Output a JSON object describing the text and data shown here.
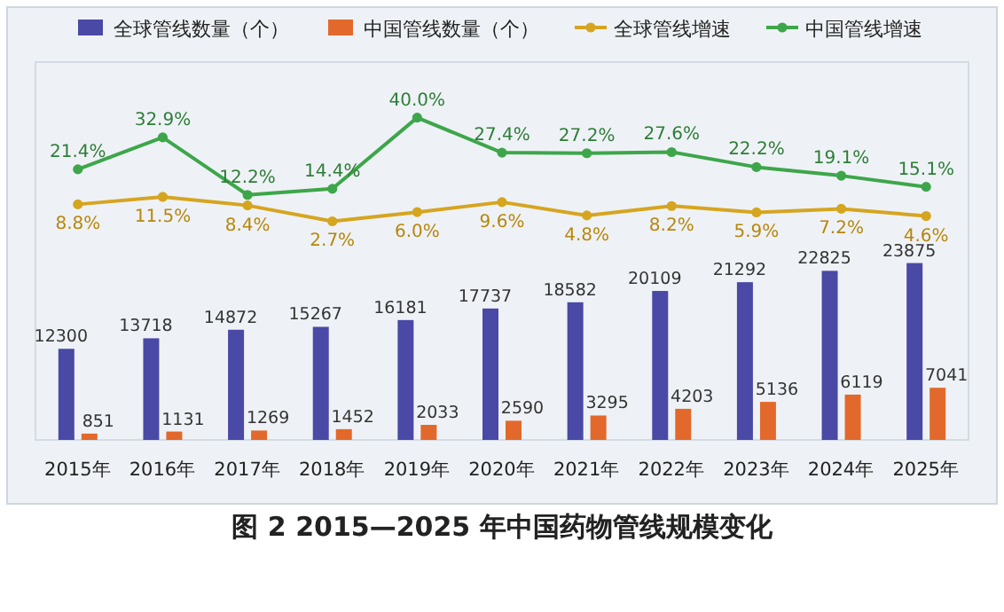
{
  "chart_data": {
    "type": "bar",
    "title": "图 2 2015—2025 年中国药物管线规模变化",
    "categories": [
      "2015年",
      "2016年",
      "2017年",
      "2018年",
      "2019年",
      "2020年",
      "2021年",
      "2022年",
      "2023年",
      "2024年",
      "2025年"
    ],
    "series": [
      {
        "name": "全球管线数量（个）",
        "color": "#4a49a6",
        "values": [
          12300,
          13718,
          14872,
          15267,
          16181,
          17737,
          18582,
          20109,
          21292,
          22825,
          23875
        ],
        "value_labels": [
          "12300",
          "13718",
          "14872",
          "15267",
          "16181",
          "17737",
          "18582",
          "20109",
          "21292",
          "22825",
          "23875"
        ]
      },
      {
        "name": "中国管线数量（个）",
        "color": "#e2692b",
        "values": [
          851,
          1131,
          1269,
          1452,
          2033,
          2590,
          3295,
          4203,
          5136,
          6119,
          7041
        ],
        "value_labels": [
          "851",
          "1131",
          "1269",
          "1452",
          "2033",
          "2590",
          "3295",
          "4203",
          "5136",
          "6119",
          "7041"
        ]
      },
      {
        "name": "全球管线增速",
        "type": "line",
        "axis": "y2",
        "color": "#d6a520",
        "values": [
          8.8,
          11.5,
          8.4,
          2.7,
          6.0,
          9.6,
          4.8,
          8.2,
          5.9,
          7.2,
          4.6
        ],
        "value_labels": [
          "8.8%",
          "11.5%",
          "8.4%",
          "2.7%",
          "6.0%",
          "9.6%",
          "4.8%",
          "8.2%",
          "5.9%",
          "7.2%",
          "4.6%"
        ]
      },
      {
        "name": "中国管线增速",
        "type": "line",
        "axis": "y2",
        "color": "#3da64a",
        "values": [
          21.4,
          32.9,
          12.2,
          14.4,
          40.0,
          27.4,
          27.2,
          27.6,
          22.2,
          19.1,
          15.1
        ],
        "value_labels": [
          "21.4%",
          "32.9%",
          "12.2%",
          "14.4%",
          "40.0%",
          "27.4%",
          "27.2%",
          "27.6%",
          "22.2%",
          "19.1%",
          "15.1%"
        ]
      }
    ],
    "ylim": [
      0,
      51000
    ],
    "y2lim": [
      -76,
      60
    ],
    "tick_labels": "x",
    "legend": "top",
    "marker": "circle"
  }
}
